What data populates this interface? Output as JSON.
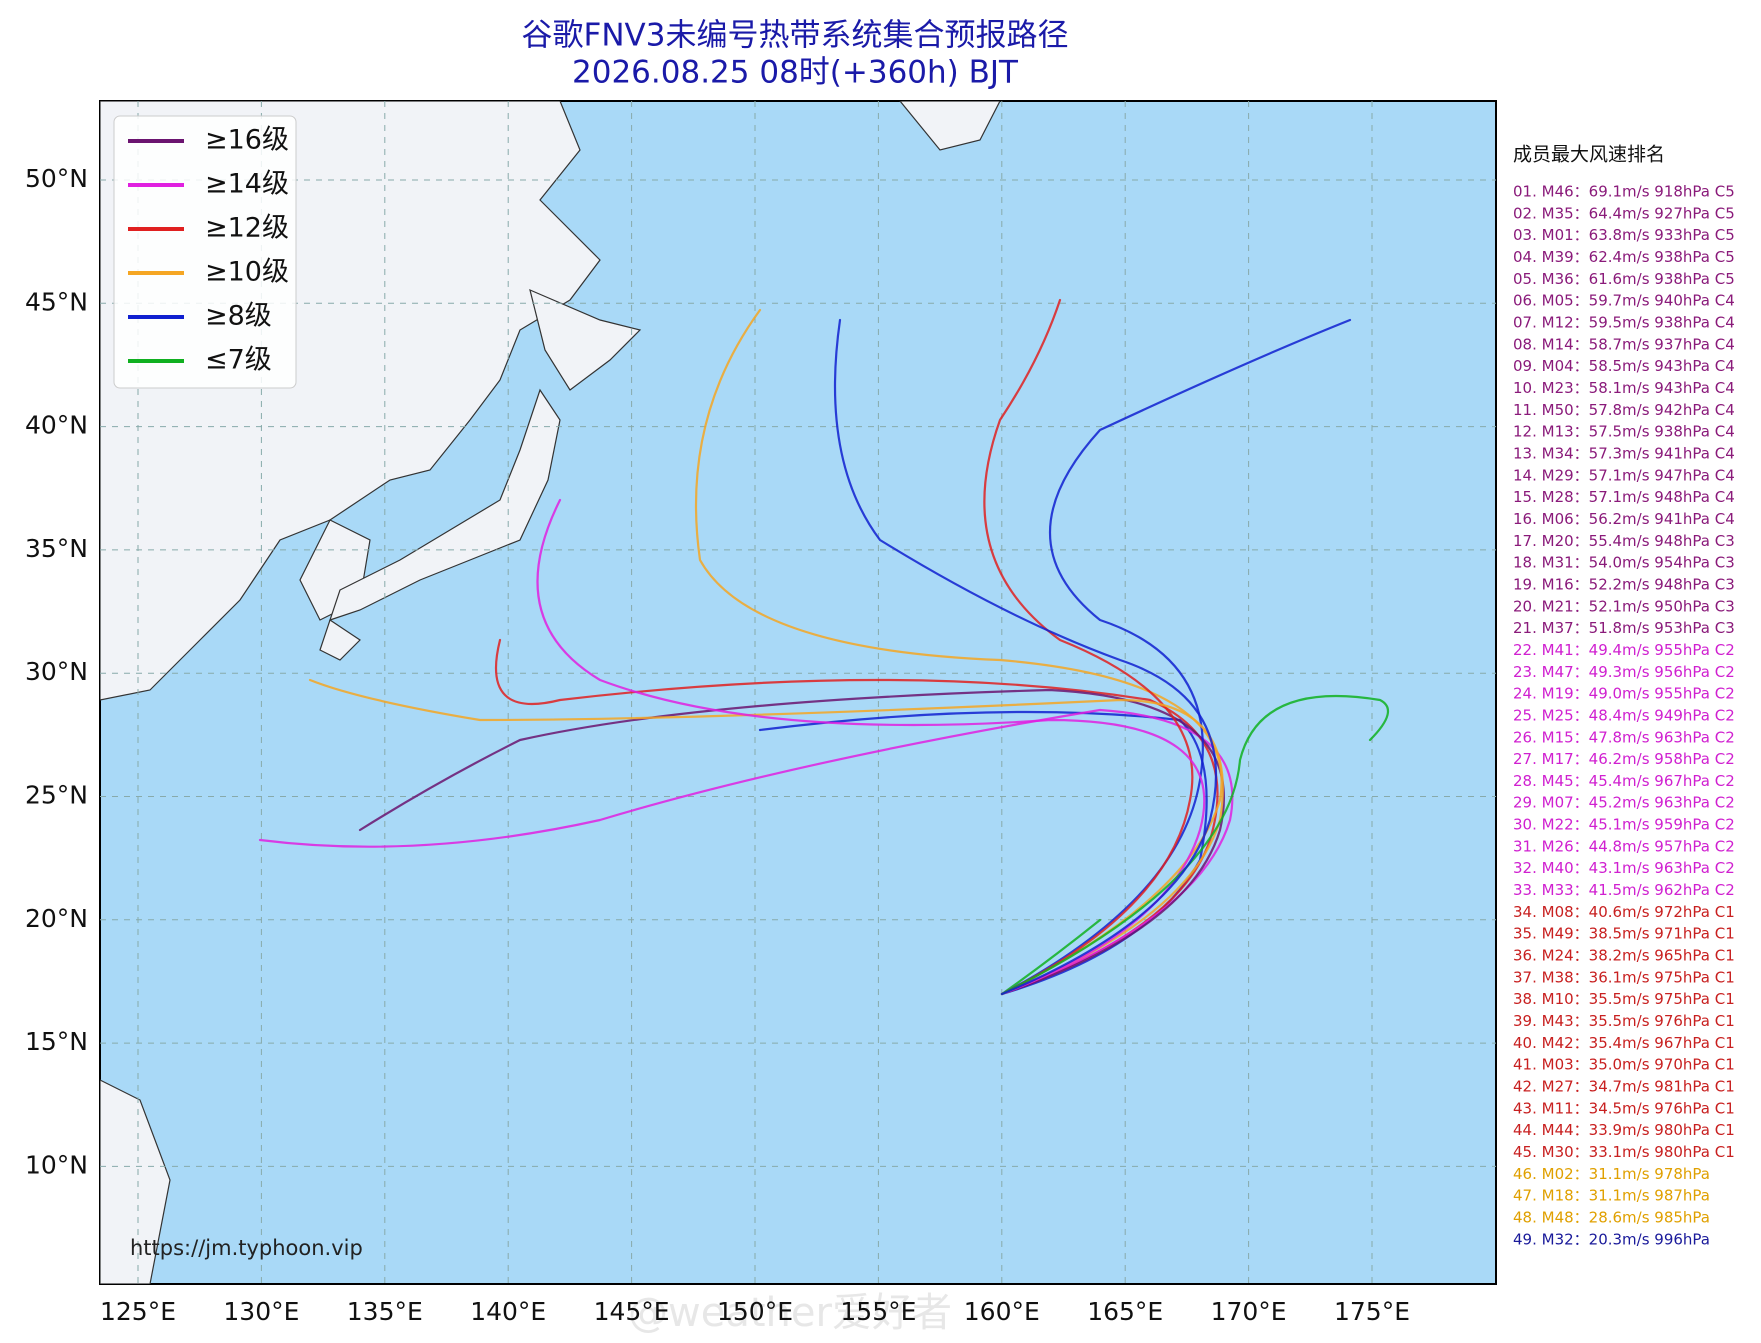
{
  "header": {
    "title": "谷歌FNV3未编号热带系统集合预报路径",
    "subtitle": "2026.08.25 08时(+360h) BJT"
  },
  "legend": [
    {
      "label": "≥16级",
      "color": "#6b1470"
    },
    {
      "label": "≥14级",
      "color": "#e020e0"
    },
    {
      "label": "≥12级",
      "color": "#e02020"
    },
    {
      "label": "≥10级",
      "color": "#f5a623"
    },
    {
      "label": "≥8级",
      "color": "#1020d0"
    },
    {
      "label": "≤7级",
      "color": "#10b020"
    }
  ],
  "axes": {
    "longitudes": [
      "125°E",
      "130°E",
      "135°E",
      "140°E",
      "145°E",
      "150°E",
      "155°E",
      "160°E",
      "165°E",
      "170°E",
      "175°E"
    ],
    "latitudes": [
      "50°N",
      "45°N",
      "40°N",
      "35°N",
      "30°N",
      "25°N",
      "20°N",
      "15°N",
      "10°N"
    ]
  },
  "ranking": {
    "title": "成员最大风速排名",
    "items": [
      {
        "text": "01. M46：69.1m/s 918hPa C5",
        "color": "#8a1a7a"
      },
      {
        "text": "02. M35：64.4m/s 927hPa C5",
        "color": "#8a1a7a"
      },
      {
        "text": "03. M01：63.8m/s 933hPa C5",
        "color": "#8a1a7a"
      },
      {
        "text": "04. M39：62.4m/s 938hPa C5",
        "color": "#8a1a7a"
      },
      {
        "text": "05. M36：61.6m/s 938hPa C5",
        "color": "#8a1a7a"
      },
      {
        "text": "06. M05：59.7m/s 940hPa C4",
        "color": "#8a1a7a"
      },
      {
        "text": "07. M12：59.5m/s 938hPa C4",
        "color": "#8a1a7a"
      },
      {
        "text": "08. M14：58.7m/s 937hPa C4",
        "color": "#8a1a7a"
      },
      {
        "text": "09. M04：58.5m/s 943hPa C4",
        "color": "#8a1a7a"
      },
      {
        "text": "10. M23：58.1m/s 943hPa C4",
        "color": "#8a1a7a"
      },
      {
        "text": "11. M50：57.8m/s 942hPa C4",
        "color": "#8a1a7a"
      },
      {
        "text": "12. M13：57.5m/s 938hPa C4",
        "color": "#8a1a7a"
      },
      {
        "text": "13. M34：57.3m/s 941hPa C4",
        "color": "#8a1a7a"
      },
      {
        "text": "14. M29：57.1m/s 947hPa C4",
        "color": "#8a1a7a"
      },
      {
        "text": "15. M28：57.1m/s 948hPa C4",
        "color": "#8a1a7a"
      },
      {
        "text": "16. M06：56.2m/s 941hPa C4",
        "color": "#8a1a7a"
      },
      {
        "text": "17. M20：55.4m/s 948hPa C3",
        "color": "#8a1a7a"
      },
      {
        "text": "18. M31：54.0m/s 954hPa C3",
        "color": "#8a1a7a"
      },
      {
        "text": "19. M16：52.2m/s 948hPa C3",
        "color": "#8a1a7a"
      },
      {
        "text": "20. M21：52.1m/s 950hPa C3",
        "color": "#8a1a7a"
      },
      {
        "text": "21. M37：51.8m/s 953hPa C3",
        "color": "#8a1a7a"
      },
      {
        "text": "22. M41：49.4m/s 955hPa C2",
        "color": "#d020d0"
      },
      {
        "text": "23. M47：49.3m/s 956hPa C2",
        "color": "#d020d0"
      },
      {
        "text": "24. M19：49.0m/s 955hPa C2",
        "color": "#d020d0"
      },
      {
        "text": "25. M25：48.4m/s 949hPa C2",
        "color": "#d020d0"
      },
      {
        "text": "26. M15：47.8m/s 963hPa C2",
        "color": "#d020d0"
      },
      {
        "text": "27. M17：46.2m/s 958hPa C2",
        "color": "#d020d0"
      },
      {
        "text": "28. M45：45.4m/s 967hPa C2",
        "color": "#d020d0"
      },
      {
        "text": "29. M07：45.2m/s 963hPa C2",
        "color": "#d020d0"
      },
      {
        "text": "30. M22：45.1m/s 959hPa C2",
        "color": "#d020d0"
      },
      {
        "text": "31. M26：44.8m/s 957hPa C2",
        "color": "#d020d0"
      },
      {
        "text": "32. M40：43.1m/s 963hPa C2",
        "color": "#d020d0"
      },
      {
        "text": "33. M33：41.5m/s 962hPa C2",
        "color": "#d020d0"
      },
      {
        "text": "34. M08：40.6m/s 972hPa C1",
        "color": "#c82020"
      },
      {
        "text": "35. M49：38.5m/s 971hPa C1",
        "color": "#c82020"
      },
      {
        "text": "36. M24：38.2m/s 965hPa C1",
        "color": "#c82020"
      },
      {
        "text": "37. M38：36.1m/s 975hPa C1",
        "color": "#c82020"
      },
      {
        "text": "38. M10：35.5m/s 975hPa C1",
        "color": "#c82020"
      },
      {
        "text": "39. M43：35.5m/s 976hPa C1",
        "color": "#c82020"
      },
      {
        "text": "40. M42：35.4m/s 967hPa C1",
        "color": "#c82020"
      },
      {
        "text": "41. M03：35.0m/s 970hPa C1",
        "color": "#c82020"
      },
      {
        "text": "42. M27：34.7m/s 981hPa C1",
        "color": "#c82020"
      },
      {
        "text": "43. M11：34.5m/s 976hPa C1",
        "color": "#c82020"
      },
      {
        "text": "44. M44：33.9m/s 980hPa C1",
        "color": "#c82020"
      },
      {
        "text": "45. M30：33.1m/s 980hPa C1",
        "color": "#c82020"
      },
      {
        "text": "46. M02：31.1m/s 978hPa",
        "color": "#e0a000"
      },
      {
        "text": "47. M18：31.1m/s 987hPa",
        "color": "#e0a000"
      },
      {
        "text": "48. M48：28.6m/s 985hPa",
        "color": "#e0a000"
      },
      {
        "text": "49. M32：20.3m/s 996hPa",
        "color": "#1a1a9a"
      }
    ]
  },
  "source": "https://jm.typhoon.vip",
  "watermark": "@weather爱好者"
}
